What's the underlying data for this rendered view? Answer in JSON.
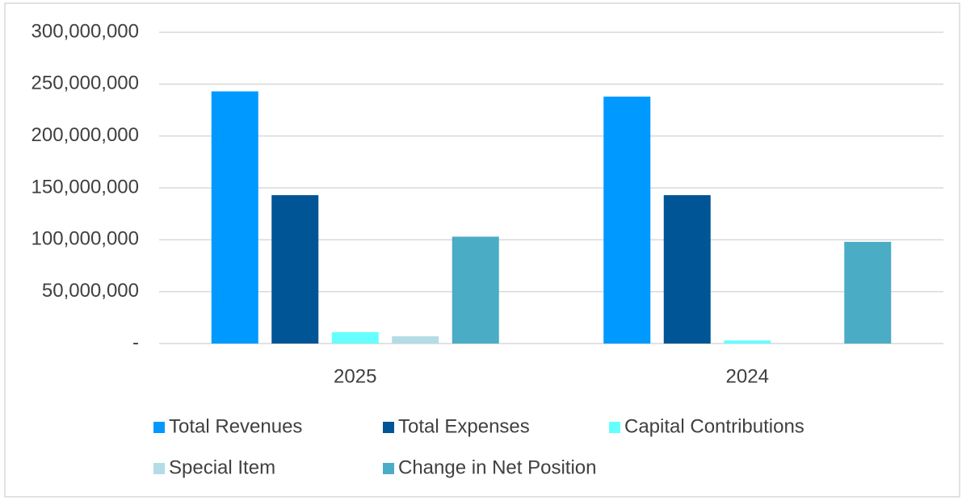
{
  "chart_data": {
    "type": "bar",
    "categories": [
      "2025",
      "2024"
    ],
    "series": [
      {
        "name": "Total Revenues",
        "color": "#0099ff",
        "values": [
          243000000,
          238000000
        ]
      },
      {
        "name": "Total Expenses",
        "color": "#005596",
        "values": [
          143000000,
          143000000
        ]
      },
      {
        "name": "Capital Contributions",
        "color": "#66ffff",
        "values": [
          11000000,
          3000000
        ]
      },
      {
        "name": "Special Item",
        "color": "#b4dce6",
        "values": [
          7000000,
          0
        ]
      },
      {
        "name": "Change in Net Position",
        "color": "#4bacc6",
        "values": [
          103000000,
          98000000
        ]
      }
    ],
    "ylim": [
      0,
      300000000
    ],
    "yticks": [
      {
        "value": 0,
        "label": "-"
      },
      {
        "value": 50000000,
        "label": "50,000,000"
      },
      {
        "value": 100000000,
        "label": "100,000,000"
      },
      {
        "value": 150000000,
        "label": "150,000,000"
      },
      {
        "value": 200000000,
        "label": "200,000,000"
      },
      {
        "value": 250000000,
        "label": "250,000,000"
      },
      {
        "value": 300000000,
        "label": "300,000,000"
      }
    ],
    "grid": true
  }
}
